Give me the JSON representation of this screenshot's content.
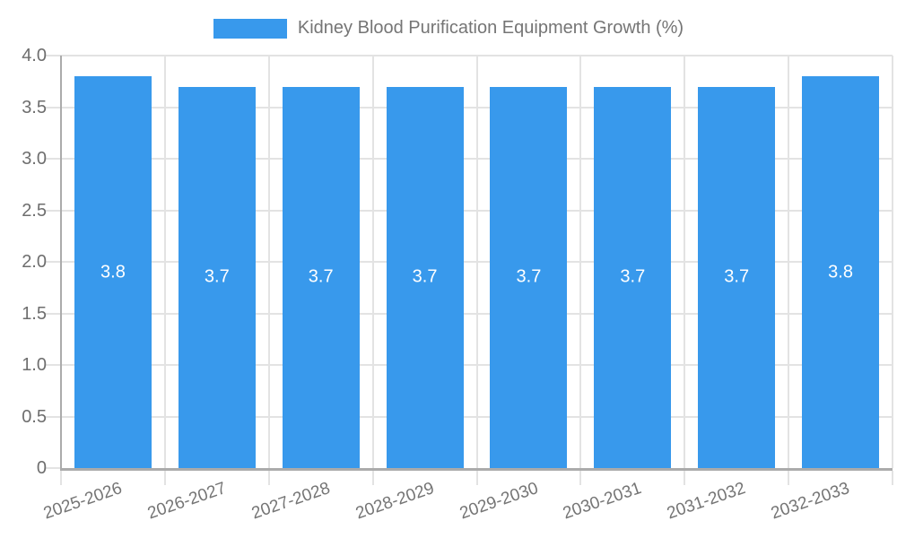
{
  "legend": {
    "label": "Kidney Blood Purification Equipment Growth (%)"
  },
  "colors": {
    "bar": "#3899ec",
    "grid": "#e3e3e3",
    "axis": "#ababab",
    "tick_text": "#6e6e6e",
    "legend_text": "#757575",
    "value_text": "#ffffff"
  },
  "chart_data": {
    "type": "bar",
    "title": "Kidney Blood Purification Equipment Growth (%)",
    "categories": [
      "2025-2026",
      "2026-2027",
      "2027-2028",
      "2028-2029",
      "2029-2030",
      "2030-2031",
      "2031-2032",
      "2032-2033"
    ],
    "values": [
      3.8,
      3.7,
      3.7,
      3.7,
      3.7,
      3.7,
      3.7,
      3.8
    ],
    "value_labels": [
      "3.8",
      "3.7",
      "3.7",
      "3.7",
      "3.7",
      "3.7",
      "3.7",
      "3.8"
    ],
    "xlabel": "",
    "ylabel": "",
    "ylim": [
      0,
      4
    ],
    "ytick_step": 0.5,
    "ytick_labels": [
      "0",
      "0.5",
      "1.0",
      "1.5",
      "2.0",
      "2.5",
      "3.0",
      "3.5",
      "4.0"
    ],
    "grid": true,
    "legend_position": "top"
  }
}
